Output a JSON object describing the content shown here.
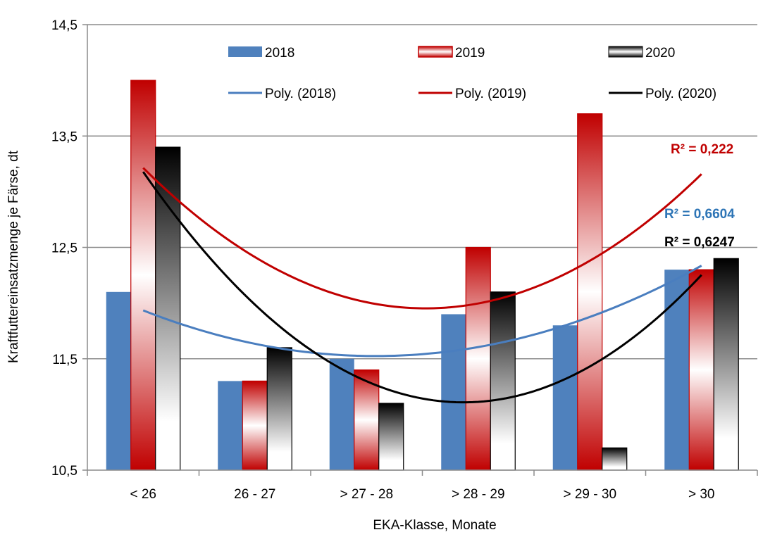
{
  "chart_data": {
    "type": "bar",
    "ylabel": "Kraftfuttereinsatzmenge je Färse, dt",
    "xlabel": "EKA-Klasse, Monate",
    "ylim": [
      10.5,
      14.5
    ],
    "yticks": [
      "10,5",
      "11,5",
      "12,5",
      "13,5",
      "14,5"
    ],
    "ytick_values": [
      10.5,
      11.5,
      12.5,
      13.5,
      14.5
    ],
    "grid": true,
    "legend_position": "top",
    "categories": [
      "< 26",
      "26 - 27",
      "> 27 - 28",
      "> 28 - 29",
      "> 29 - 30",
      "> 30"
    ],
    "series": [
      {
        "name": "2018",
        "values": [
          12.1,
          11.3,
          11.5,
          11.9,
          11.8,
          12.3
        ],
        "color": "#4f81bd"
      },
      {
        "name": "2019",
        "values": [
          14.0,
          11.3,
          11.4,
          12.5,
          13.7,
          12.3
        ],
        "color": "#c00000"
      },
      {
        "name": "2020",
        "values": [
          13.4,
          11.6,
          11.1,
          12.1,
          10.7,
          12.4
        ],
        "color": "#000000"
      }
    ],
    "trendlines": [
      {
        "name": "Poly. (2018)",
        "color": "#4a7ebf",
        "values": [
          11.92,
          11.66,
          11.53,
          11.58,
          11.88,
          12.34
        ],
        "r2": "R² = 0,6604"
      },
      {
        "name": "Poly. (2019)",
        "color": "#c00000",
        "values": [
          13.2,
          12.44,
          12.0,
          12.0,
          12.36,
          13.17
        ],
        "r2": "R² = 0,222"
      },
      {
        "name": "Poly. (2020)",
        "color": "#000000",
        "values": [
          13.2,
          11.96,
          11.27,
          11.14,
          11.46,
          12.23
        ],
        "r2": "R² = 0,6247"
      }
    ]
  }
}
